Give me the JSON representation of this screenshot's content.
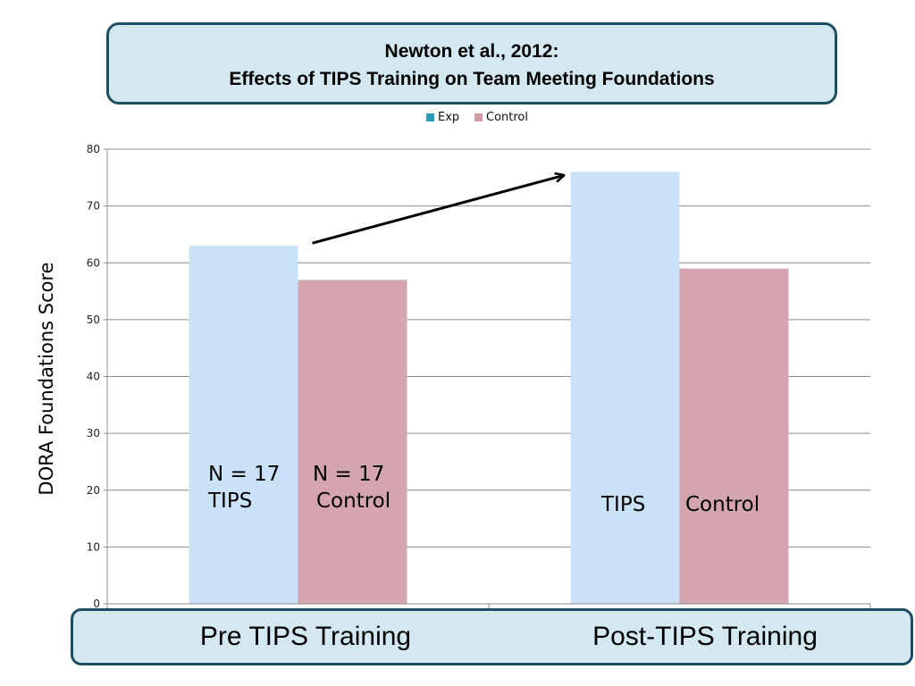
{
  "header": {
    "line1": "Newton et al., 2012:",
    "line2": "Effects of TIPS Training on Team Meeting Foundations"
  },
  "chart_data": {
    "type": "bar",
    "title": "Newton et al., 2012: Effects of TIPS Training on Team Meeting Foundations",
    "categories": [
      "Pre TIPS Training",
      "Post-TIPS Training"
    ],
    "series": [
      {
        "name": "Exp",
        "values": [
          63,
          76
        ],
        "color": "#c9e2f8"
      },
      {
        "name": "Control",
        "values": [
          57,
          59
        ],
        "color": "#d4a5ae"
      }
    ],
    "ylabel": "DORA Foundations Score",
    "xlabel": "",
    "ylim": [
      0,
      80
    ],
    "yticks": [
      0,
      10,
      20,
      30,
      40,
      50,
      60,
      70,
      80
    ],
    "grid": true,
    "legend_position": "top-center",
    "annotations": {
      "pre_exp_line1": "N = 17",
      "pre_exp_line2": "TIPS",
      "pre_ctrl_line1": "N = 17",
      "pre_ctrl_line2": "Control",
      "post_exp": "TIPS",
      "post_ctrl": "Control"
    },
    "arrow": {
      "from_series": "Exp",
      "from_category": "Pre TIPS Training",
      "to_category": "Post-TIPS Training"
    }
  }
}
